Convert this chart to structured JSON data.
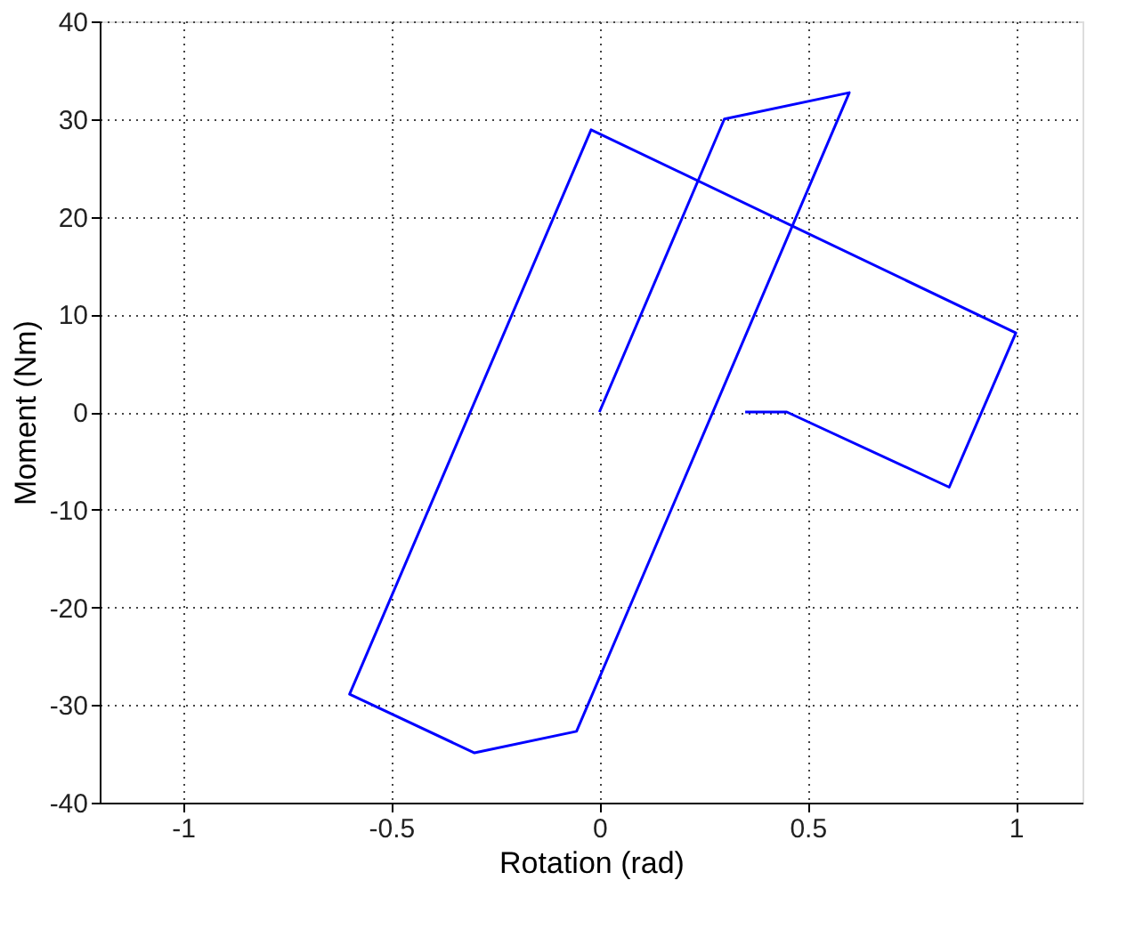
{
  "chart_data": {
    "type": "line",
    "xlabel": "Rotation (rad)",
    "ylabel": "Moment (Nm)",
    "series": [
      {
        "color": "#0000ff",
        "x": [
          0,
          0.3,
          0.6,
          -0.055,
          -0.3,
          -0.6,
          -0.02,
          1.0,
          0.84,
          0.45,
          0.35
        ],
        "values": [
          0,
          30,
          32.7,
          -32.7,
          -34.9,
          -28.9,
          28.9,
          8.1,
          -7.7,
          0,
          0
        ]
      }
    ],
    "xlim": [
      -1.2,
      1.16
    ],
    "xticks": [
      -1,
      -0.5,
      0,
      0.5,
      1
    ],
    "ylim": [
      -40,
      40
    ],
    "yticks": [
      -40,
      -30,
      -20,
      -10,
      0,
      10,
      20,
      30,
      40
    ],
    "grid": true,
    "marker": "none",
    "line_style": "solid"
  }
}
